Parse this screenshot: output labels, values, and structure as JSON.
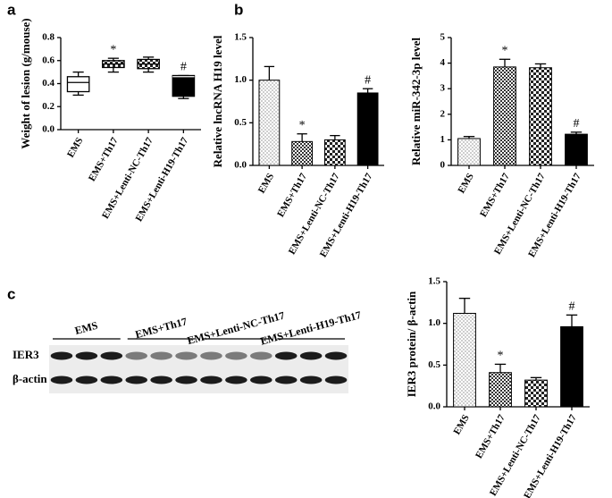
{
  "panel_labels": [
    "a",
    "b",
    "c"
  ],
  "blot": {
    "lane_groups": [
      "EMS",
      "EMS+Th17",
      "EMS+Lenti-NC-Th17",
      "EMS+Lenti-H19-Th17"
    ],
    "rows": [
      "IER3",
      "β-actin"
    ]
  },
  "chart_data": [
    {
      "type": "box",
      "ylabel": "Weight of lesion (g/mouse)",
      "categories": [
        "EMS",
        "EMS+Th17",
        "EMS+Lenti-NC-Th17",
        "EMS+Lenti-H19-Th17"
      ],
      "min": [
        0.3,
        0.5,
        0.5,
        0.27
      ],
      "q1": [
        0.33,
        0.54,
        0.53,
        0.29
      ],
      "median": [
        0.41,
        0.57,
        0.57,
        0.46
      ],
      "q3": [
        0.46,
        0.6,
        0.61,
        0.47
      ],
      "max": [
        0.5,
        0.62,
        0.63,
        0.47
      ],
      "fills": [
        "white",
        "check",
        "check",
        "black"
      ],
      "annotations": [
        null,
        "*",
        null,
        "#"
      ],
      "ylim": [
        0,
        0.8
      ],
      "yticks": [
        {
          "value": 0,
          "label": "0.0"
        },
        0.2,
        0.4,
        0.6,
        0.8
      ]
    },
    {
      "type": "bar",
      "ylabel": "Relative lncRNA H19 level",
      "categories": [
        "EMS",
        "EMS+Th17",
        "EMS+Lenti-NC-Th17",
        "EMS+Lenti-H19-Th17"
      ],
      "values": [
        1.0,
        0.28,
        0.3,
        0.85
      ],
      "errors": [
        0.16,
        0.09,
        0.05,
        0.05
      ],
      "fills": [
        "dots",
        "fine-check",
        "check",
        "black"
      ],
      "annotations": [
        null,
        "*",
        null,
        "#"
      ],
      "ylim": [
        0,
        1.5
      ],
      "yticks": [
        {
          "value": 0,
          "label": "0.0"
        },
        0.5,
        {
          "value": 1,
          "label": "1.0"
        },
        1.5
      ]
    },
    {
      "type": "bar",
      "ylabel": "Relative miR-342-3p level",
      "categories": [
        "EMS",
        "EMS+Th17",
        "EMS+Lenti-NC-Th17",
        "EMS+Lenti-H19-Th17"
      ],
      "values": [
        1.05,
        3.85,
        3.82,
        1.22
      ],
      "errors": [
        0.08,
        0.3,
        0.15,
        0.08
      ],
      "fills": [
        "dots",
        "fine-check",
        "check",
        "black"
      ],
      "annotations": [
        null,
        "*",
        null,
        "#"
      ],
      "ylim": [
        0,
        5
      ],
      "yticks": [
        0,
        1,
        2,
        3,
        4,
        5
      ]
    },
    {
      "type": "bar",
      "ylabel": "IER3 protein/ β-actin",
      "categories": [
        "EMS",
        "EMS+Th17",
        "EMS+Lenti-NC-Th17",
        "EMS+Lenti-H19-Th17"
      ],
      "values": [
        1.12,
        0.41,
        0.32,
        0.96
      ],
      "errors": [
        0.18,
        0.1,
        0.03,
        0.14
      ],
      "fills": [
        "dots",
        "fine-check",
        "check",
        "black"
      ],
      "annotations": [
        null,
        "*",
        null,
        "#"
      ],
      "ylim": [
        0,
        1.5
      ],
      "yticks": [
        {
          "value": 0,
          "label": "0.0"
        },
        0.5,
        {
          "value": 1,
          "label": "1.0"
        },
        1.5
      ]
    }
  ]
}
